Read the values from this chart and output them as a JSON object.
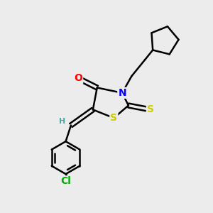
{
  "bg_color": "#ececec",
  "bond_color": "#000000",
  "bond_width": 1.8,
  "atom_colors": {
    "O": "#ff0000",
    "N": "#0000ff",
    "S": "#cccc00",
    "Cl": "#00aa00",
    "H": "#44aaaa",
    "C": "#000000"
  },
  "font_size_atom": 10,
  "font_size_small": 8,
  "figsize": [
    3.0,
    3.0
  ],
  "dpi": 100
}
